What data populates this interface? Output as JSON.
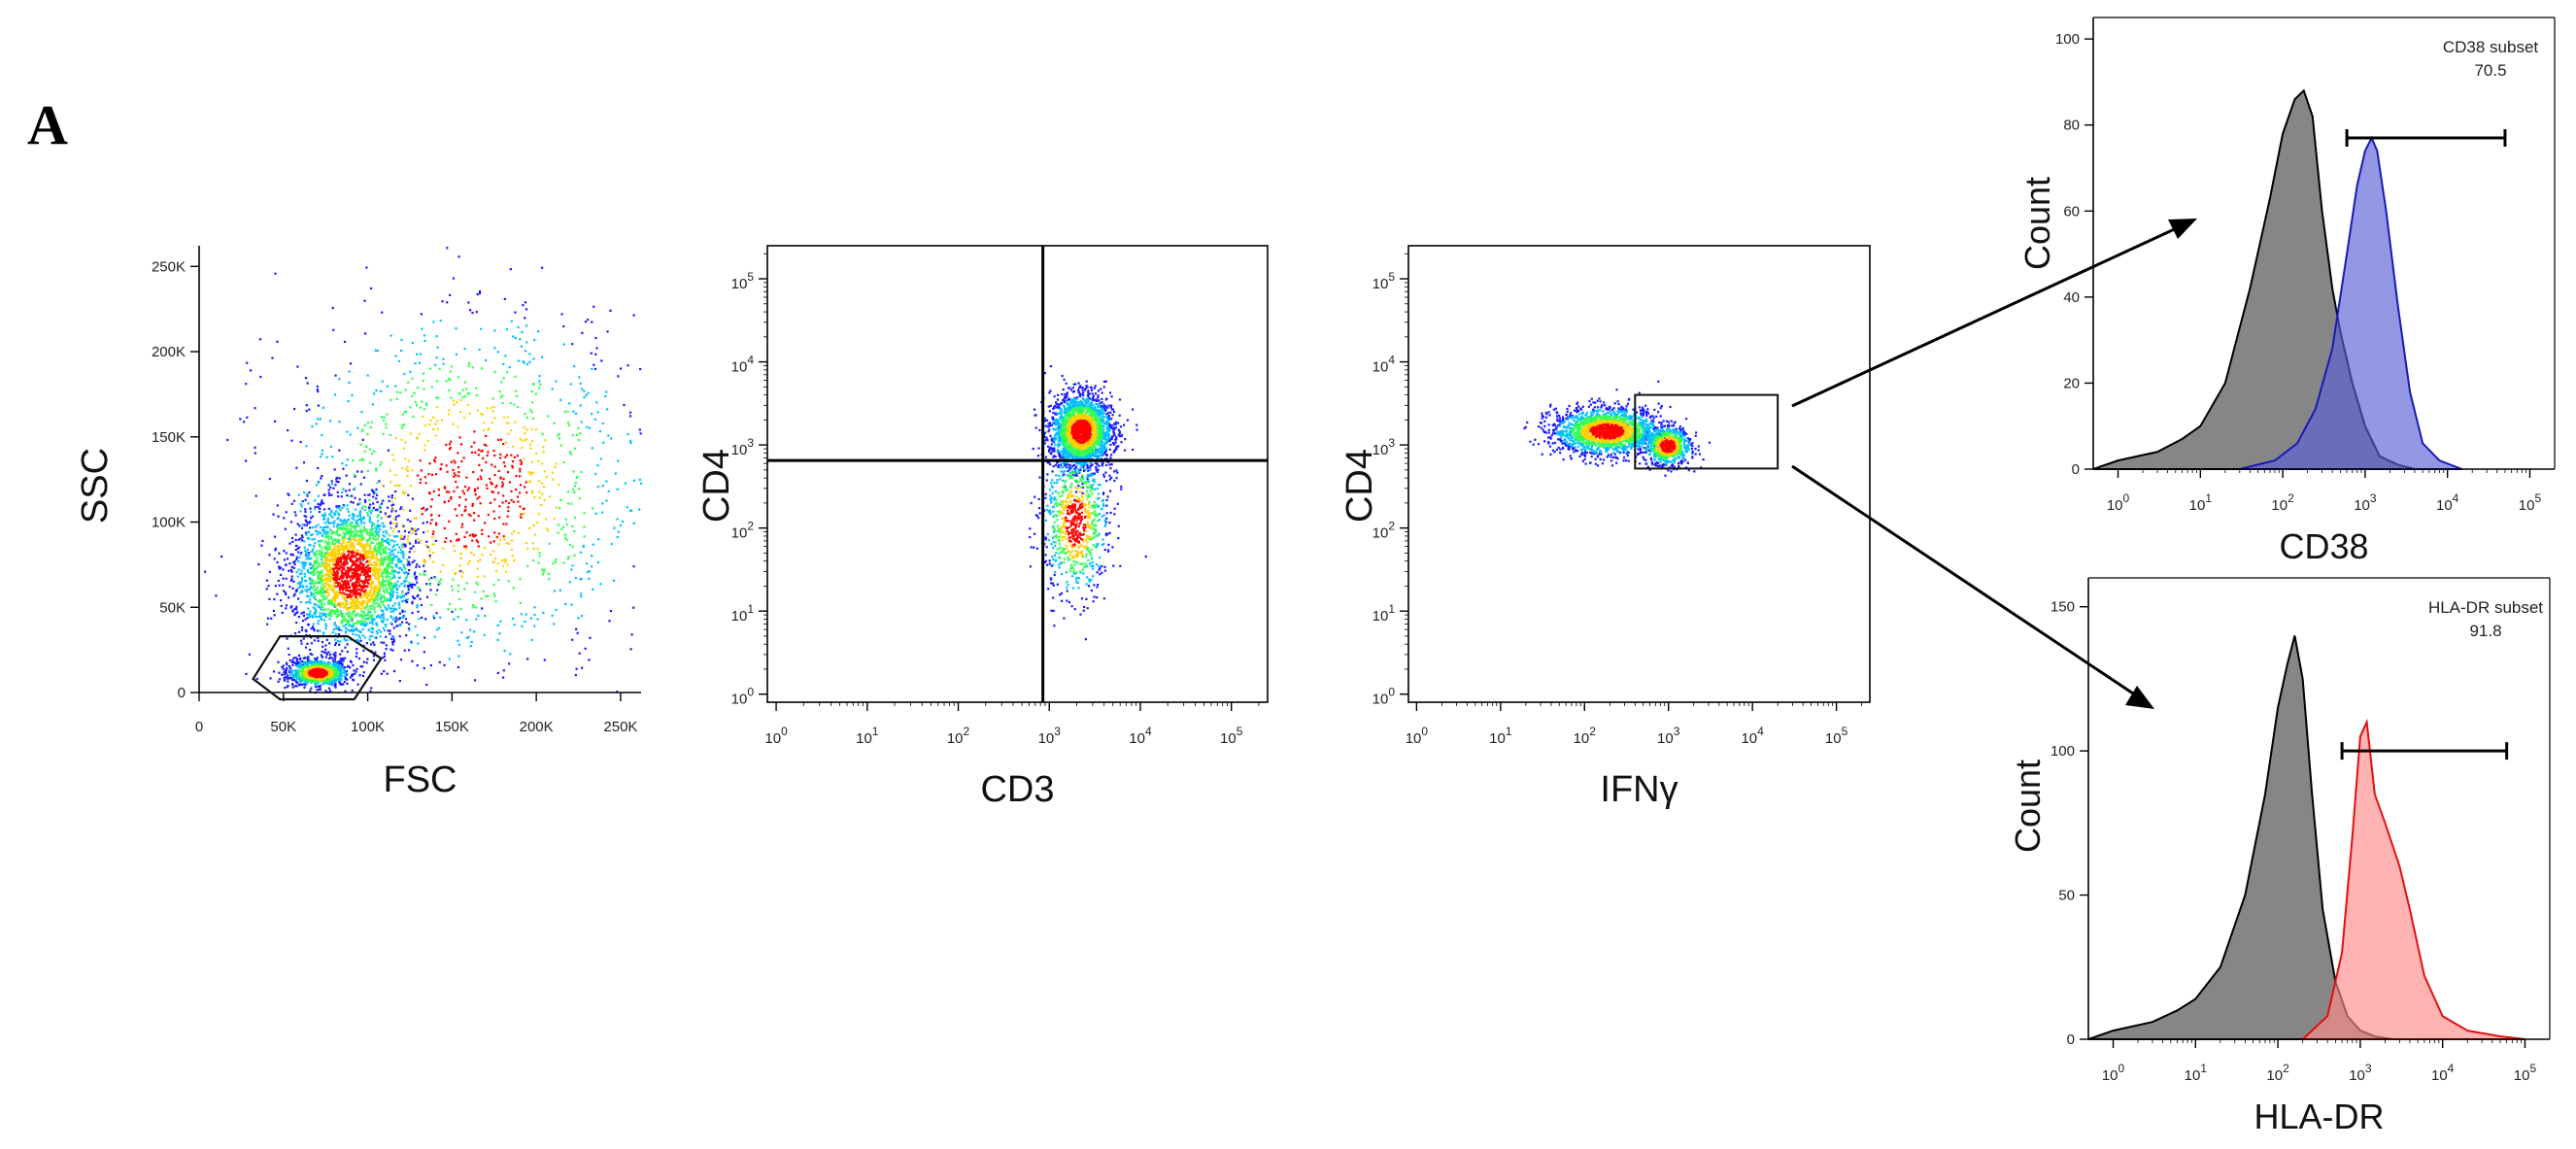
{
  "panel_label": "A",
  "chart_data": [
    {
      "type": "scatter",
      "xlabel": "FSC",
      "ylabel": "SSC",
      "x_scale": "linear",
      "y_scale": "linear",
      "xlim": [
        0,
        262144
      ],
      "ylim": [
        0,
        262144
      ],
      "x_ticks": [
        0,
        50000,
        100000,
        150000,
        200000,
        250000
      ],
      "x_tick_labels": [
        "0",
        "50K",
        "100K",
        "150K",
        "200K",
        "250K"
      ],
      "y_ticks": [
        0,
        50000,
        100000,
        150000,
        200000,
        250000
      ],
      "y_tick_labels": [
        "0",
        "50K",
        "100K",
        "150K",
        "200K",
        "250K"
      ],
      "populations": [
        {
          "x": 70000,
          "y": 12000,
          "count": 900,
          "spread": [
            9000,
            4000
          ]
        },
        {
          "x": 90000,
          "y": 70000,
          "count": 2600,
          "spread": [
            18000,
            22000
          ]
        },
        {
          "x": 160000,
          "y": 120000,
          "count": 1300,
          "spread": [
            55000,
            55000
          ]
        }
      ],
      "gate": [
        [
          32000,
          8000
        ],
        [
          48000,
          -4000
        ],
        [
          92000,
          -4000
        ],
        [
          108000,
          20000
        ],
        [
          88000,
          33000
        ],
        [
          48000,
          33000
        ]
      ]
    },
    {
      "type": "scatter",
      "xlabel": "CD3",
      "ylabel": "CD4",
      "x_scale": "log",
      "y_scale": "log",
      "xlim": [
        0.8,
        250000
      ],
      "ylim": [
        0.8,
        250000
      ],
      "x_ticks": [
        1,
        10,
        100,
        1000,
        10000,
        100000
      ],
      "y_ticks": [
        1,
        10,
        100,
        1000,
        10000,
        100000
      ],
      "quadrant": {
        "x": 850,
        "y": 650
      },
      "populations": [
        {
          "x": 2200,
          "y": 1500,
          "count": 2200,
          "spread": [
            0.17,
            0.22
          ]
        },
        {
          "x": 1900,
          "y": 120,
          "count": 800,
          "spread": [
            0.18,
            0.45
          ]
        }
      ]
    },
    {
      "type": "scatter",
      "xlabel": "IFNγ",
      "ylabel": "CD4",
      "x_scale": "log",
      "y_scale": "log",
      "xlim": [
        0.8,
        250000
      ],
      "ylim": [
        0.8,
        250000
      ],
      "x_ticks": [
        1,
        10,
        100,
        1000,
        10000,
        100000
      ],
      "y_ticks": [
        1,
        10,
        100,
        1000,
        10000,
        100000
      ],
      "populations": [
        {
          "x": 180,
          "y": 1500,
          "count": 1800,
          "spread": [
            0.32,
            0.14
          ]
        },
        {
          "x": 950,
          "y": 1000,
          "count": 700,
          "spread": [
            0.14,
            0.12
          ]
        }
      ],
      "gate": {
        "x": [
          400,
          20000
        ],
        "y": [
          520,
          4000
        ]
      }
    },
    {
      "type": "area",
      "xlabel": "CD38",
      "ylabel": "Count",
      "x_scale": "log",
      "xlim": [
        0.5,
        200000
      ],
      "ylim": [
        0,
        105
      ],
      "x_ticks": [
        1,
        10,
        100,
        1000,
        10000,
        100000
      ],
      "y_ticks": [
        0,
        20,
        40,
        60,
        80,
        100
      ],
      "y_tick_labels": [
        "0",
        "20",
        "40",
        "60",
        "80",
        "100"
      ],
      "gate_label": "CD38 subset",
      "gate_value": "70.5",
      "gate_range": [
        600,
        50000
      ],
      "gate_height": 77,
      "series": [
        {
          "color": "#7f7f7f",
          "edge": "#000000",
          "x": [
            0.5,
            1,
            3,
            6,
            10,
            20,
            40,
            70,
            100,
            140,
            180,
            230,
            300,
            400,
            500,
            700,
            1000,
            1500,
            2500,
            4000
          ],
          "y": [
            0,
            2,
            4,
            7,
            10,
            20,
            42,
            63,
            78,
            86,
            88,
            82,
            60,
            42,
            32,
            20,
            10,
            3,
            1,
            0
          ]
        },
        {
          "color": "#5b5fd6",
          "edge": "#1a1ab4",
          "x": [
            30,
            80,
            150,
            250,
            400,
            600,
            800,
            1000,
            1200,
            1400,
            1800,
            2500,
            3500,
            5000,
            8000,
            15000
          ],
          "y": [
            0,
            2,
            6,
            14,
            28,
            50,
            66,
            74,
            77,
            74,
            60,
            38,
            18,
            6,
            2,
            0
          ]
        }
      ]
    },
    {
      "type": "area",
      "xlabel": "HLA-DR",
      "ylabel": "Count",
      "x_scale": "log",
      "xlim": [
        0.5,
        200000
      ],
      "ylim": [
        0,
        160
      ],
      "x_ticks": [
        1,
        10,
        100,
        1000,
        10000,
        100000
      ],
      "y_ticks": [
        0,
        50,
        100,
        150
      ],
      "y_tick_labels": [
        "0",
        "50",
        "100",
        "150"
      ],
      "gate_label": "HLA-DR subset",
      "gate_value": "91.8",
      "gate_range": [
        600,
        60000
      ],
      "gate_height": 100,
      "series": [
        {
          "color": "#7f7f7f",
          "edge": "#000000",
          "x": [
            0.5,
            1,
            3,
            6,
            10,
            20,
            40,
            70,
            100,
            130,
            160,
            200,
            260,
            350,
            500,
            700,
            1000,
            1500,
            2500
          ],
          "y": [
            0,
            3,
            6,
            10,
            14,
            25,
            50,
            85,
            115,
            130,
            140,
            125,
            85,
            45,
            20,
            8,
            3,
            1,
            0
          ]
        },
        {
          "color": "#ff8a8a",
          "edge": "#e01010",
          "x": [
            200,
            400,
            600,
            800,
            1000,
            1200,
            1500,
            2000,
            3000,
            4000,
            6000,
            10000,
            20000,
            50000,
            100000
          ],
          "y": [
            0,
            8,
            30,
            70,
            105,
            110,
            85,
            75,
            60,
            45,
            22,
            8,
            3,
            1,
            0
          ]
        }
      ]
    }
  ],
  "colors": {
    "density_low": "#1a1aff",
    "density_mid": "#00c0ff",
    "density_mid2": "#30ff50",
    "density_high": "#ffd000",
    "density_peak": "#ff0000",
    "axis": "#000000"
  }
}
